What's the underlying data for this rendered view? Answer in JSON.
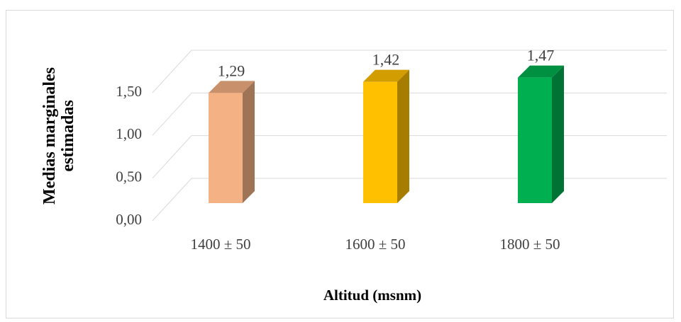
{
  "chart_data": {
    "type": "bar3d",
    "y_label": "Medias marginales estimadas",
    "x_label": "Altitud (msnm)",
    "categories": [
      "1400 ± 50",
      "1600 ± 50",
      "1800 ± 50"
    ],
    "values": [
      1.29,
      1.42,
      1.47
    ],
    "value_labels": [
      "1,29",
      "1,42",
      "1,47"
    ],
    "colors": [
      "#f4b183",
      "#ffc000",
      "#00b050"
    ],
    "ylim": [
      0,
      1.5
    ],
    "yticks": [
      {
        "value": 0,
        "label": "0,00"
      },
      {
        "value": 0.5,
        "label": "0,50"
      },
      {
        "value": 1,
        "label": "1,00"
      },
      {
        "value": 1.5,
        "label": "1,50"
      }
    ],
    "grid": true
  }
}
